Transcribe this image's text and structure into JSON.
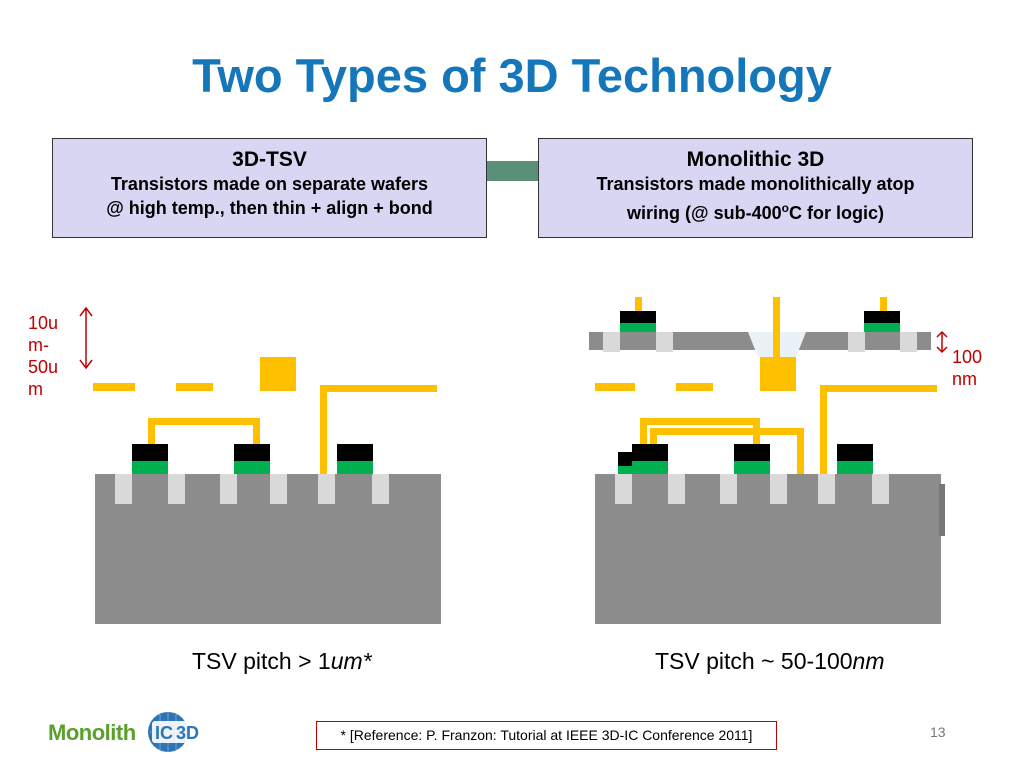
{
  "slide": {
    "title": "Two Types of 3D Technology",
    "page_number": "13"
  },
  "left_box": {
    "heading": "3D-TSV",
    "line1": "Transistors made on separate wafers",
    "line2": "@ high temp., then thin + align + bond"
  },
  "right_box": {
    "heading": "Monolithic 3D",
    "line1": "Transistors made monolithically atop",
    "line2_pre": "wiring   (@ sub-400",
    "line2_sup": "o",
    "line2_post": "C for logic)"
  },
  "left_dimension": {
    "l1": "10u",
    "l2": "m-",
    "l3": "50u",
    "l4": "m"
  },
  "right_dimension": {
    "l1": "100",
    "l2": "nm"
  },
  "left_caption": {
    "text": "TSV pitch > 1",
    "unit": "um*"
  },
  "right_caption": {
    "text": "TSV pitch ~ 50-100",
    "unit": "nm"
  },
  "reference": "* [Reference: P. Franzon: Tutorial at IEEE 3D-IC Conference 2011]",
  "logo": {
    "text": "Monolith",
    "badge": "3D",
    "badge_letters": "IC"
  },
  "colors": {
    "title": "#1577b9",
    "box_fill": "#d8d6f2",
    "connector": "#5a8f78",
    "substrate": "#8c8c8c",
    "via": "#d9d9d9",
    "wire": "#ffc000",
    "transistor_top": "#000000",
    "transistor_channel": "#00b050",
    "dimension": "#c00000",
    "logo_green": "#5aa02c",
    "logo_blue": "#2e75b6"
  }
}
